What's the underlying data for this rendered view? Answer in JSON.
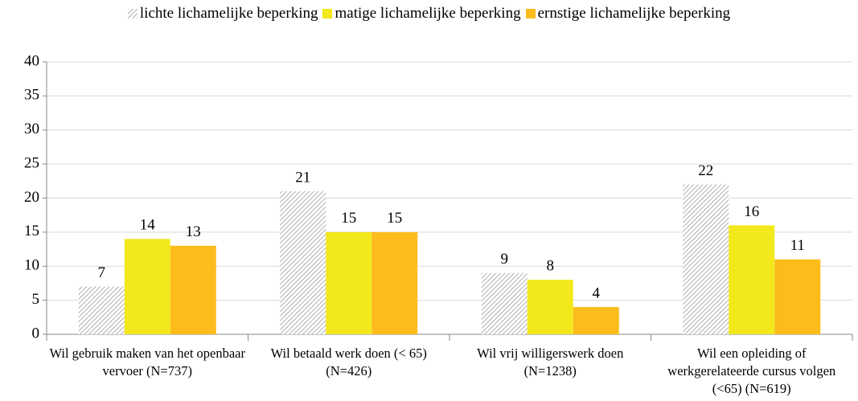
{
  "chart_data": {
    "type": "bar",
    "categories": [
      "Wil gebruik maken van het openbaar vervoer (N=737)",
      "Wil betaald werk doen (< 65) (N=426)",
      "Wil vrij willigerswerk doen (N=1238)",
      "Wil een opleiding of werkgerelateerde cursus volgen (<65) (N=619)"
    ],
    "series": [
      {
        "name": "lichte lichamelijke beperking",
        "color": "#a6a6a6",
        "pattern": "diagonal-hatch",
        "values": [
          7,
          21,
          9,
          22
        ]
      },
      {
        "name": "matige lichamelijke beperking",
        "color": "#f2e81c",
        "values": [
          14,
          15,
          8,
          16
        ]
      },
      {
        "name": "ernstige lichamelijke beperking",
        "color": "#fbbc1c",
        "values": [
          13,
          15,
          4,
          11
        ]
      }
    ],
    "ylim": [
      0,
      40
    ],
    "yticks": [
      0,
      5,
      10,
      15,
      20,
      25,
      30,
      35,
      40
    ],
    "grid": true,
    "legend": "top"
  }
}
